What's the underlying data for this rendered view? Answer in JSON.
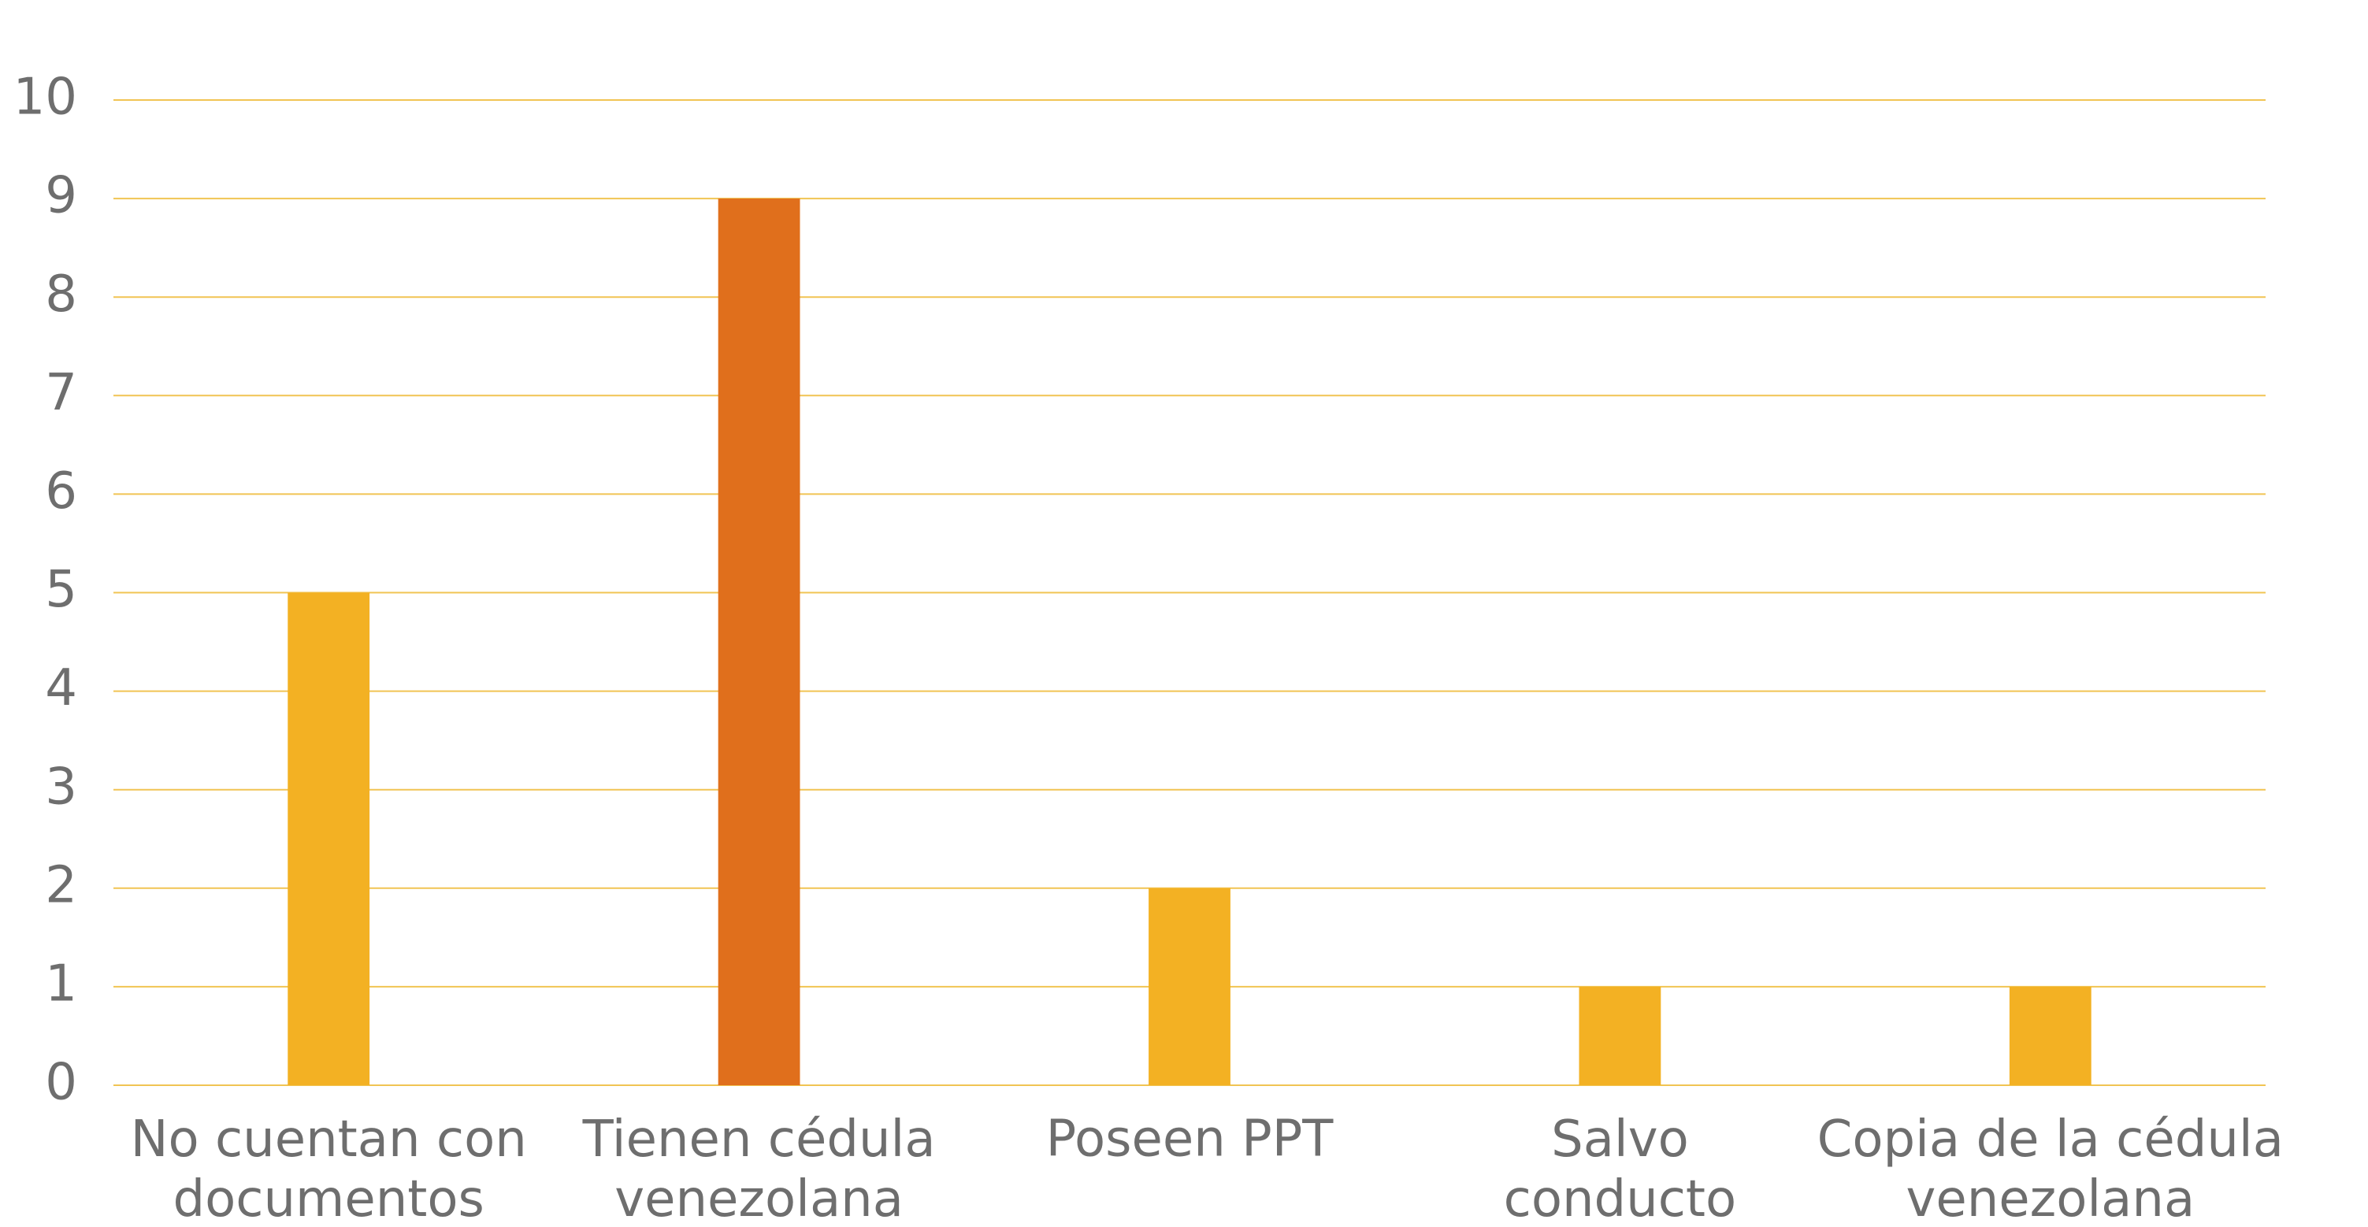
{
  "chart_data": {
    "type": "bar",
    "categories": [
      "No cuentan con documentos",
      "Tienen cédula venezolana",
      "Poseen PPT",
      "Salvo conducto",
      "Copia de la cédula venezolana"
    ],
    "values": [
      5,
      9,
      2,
      1,
      1
    ],
    "colors": [
      "#f3b123",
      "#e06f1c",
      "#f3b123",
      "#f3b123",
      "#f3b123"
    ],
    "ylim": [
      0,
      10
    ],
    "yticks": [
      0,
      1,
      2,
      3,
      4,
      5,
      6,
      7,
      8,
      9,
      10
    ],
    "grid": true
  }
}
